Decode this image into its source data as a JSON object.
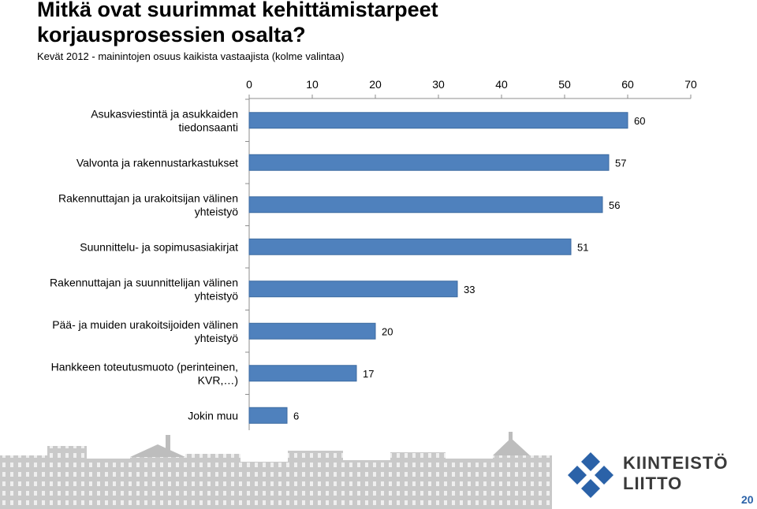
{
  "slide": {
    "title": "Mitkä ovat suurimmat kehittämistarpeet korjausprosessien osalta?",
    "subtitle": "Kevät 2012 - mainintojen osuus kaikista vastaajista (kolme valintaa)",
    "page_number": "20"
  },
  "logo": {
    "line1": "KIINTEISTÖ",
    "line2": "LIITTO",
    "color": "#2b62a8"
  },
  "colors": {
    "bar": "#4f81bd",
    "bar_edge": "#3c6aa0"
  },
  "chart_data": {
    "type": "bar",
    "orientation": "horizontal",
    "categories": [
      [
        "Asukasviestintä ja asukkaiden",
        "tiedonsaanti"
      ],
      [
        "Valvonta ja rakennustarkastukset"
      ],
      [
        "Rakennuttajan ja urakoitsijan välinen",
        "yhteistyö"
      ],
      [
        "Suunnittelu- ja sopimusasiakirjat"
      ],
      [
        "Rakennuttajan ja suunnittelijan välinen",
        "yhteistyö"
      ],
      [
        "Pää- ja muiden urakoitsijoiden välinen",
        "yhteistyö"
      ],
      [
        "Hankkeen toteutusmuoto (perinteinen,",
        "KVR,…)"
      ],
      [
        "Jokin muu"
      ]
    ],
    "values": [
      60,
      57,
      56,
      51,
      33,
      20,
      17,
      6
    ],
    "xlim": [
      0,
      70
    ],
    "xticks": [
      0,
      10,
      20,
      30,
      40,
      50,
      60,
      70
    ],
    "axis_position": "top",
    "grid": false,
    "data_labels": true
  }
}
